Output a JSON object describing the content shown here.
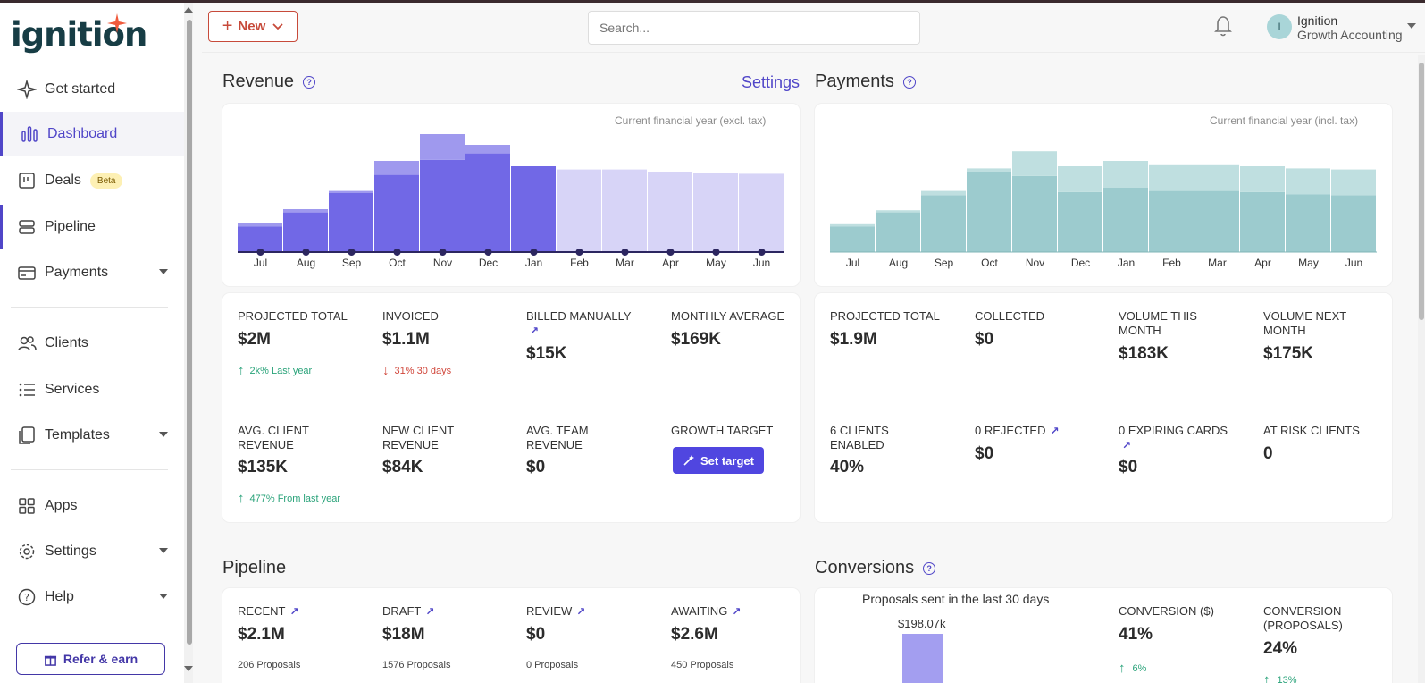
{
  "app": {
    "logo": "ignition"
  },
  "topbar": {
    "new_label": "New",
    "search_placeholder": "Search...",
    "avatar_initial": "I",
    "org_name": "Ignition",
    "org_sub": "Growth Accounting"
  },
  "sidebar": {
    "items": [
      {
        "label": "Get started"
      },
      {
        "label": "Dashboard"
      },
      {
        "label": "Deals",
        "badge": "Beta"
      },
      {
        "label": "Pipeline"
      },
      {
        "label": "Payments"
      },
      {
        "label": "Clients"
      },
      {
        "label": "Services"
      },
      {
        "label": "Templates"
      },
      {
        "label": "Apps"
      },
      {
        "label": "Settings"
      },
      {
        "label": "Help"
      }
    ],
    "refer_label": "Refer & earn"
  },
  "revenue": {
    "title": "Revenue",
    "settings_label": "Settings",
    "caption": "Current financial year (excl. tax)",
    "metrics": [
      {
        "label": "PROJECTED TOTAL",
        "value": "$2M",
        "trend_pct": "2k%",
        "trend_text": "Last year"
      },
      {
        "label": "INVOICED",
        "value": "$1.1M",
        "trend_pct": "31%",
        "trend_text": "30 days"
      },
      {
        "label": "BILLED MANUALLY",
        "value": "$15K"
      },
      {
        "label": "MONTHLY AVERAGE",
        "value": "$169K"
      },
      {
        "label": "AVG. CLIENT REVENUE",
        "value": "$135K",
        "trend_pct": "477%",
        "trend_text": "From last year"
      },
      {
        "label": "NEW CLIENT REVENUE",
        "value": "$84K"
      },
      {
        "label": "AVG. TEAM REVENUE",
        "value": "$0"
      },
      {
        "label": "GROWTH TARGET",
        "button": "Set target"
      }
    ]
  },
  "payments": {
    "title": "Payments",
    "caption": "Current financial year (incl. tax)",
    "metrics": [
      {
        "label": "PROJECTED TOTAL",
        "value": "$1.9M"
      },
      {
        "label": "COLLECTED",
        "value": "$0"
      },
      {
        "label": "VOLUME THIS MONTH",
        "value": "$183K"
      },
      {
        "label": "VOLUME NEXT MONTH",
        "value": "$175K"
      },
      {
        "label": "6 CLIENTS ENABLED",
        "value": "40%"
      },
      {
        "label": "0 REJECTED",
        "value": "$0"
      },
      {
        "label": "0 EXPIRING CARDS",
        "value": "$0"
      },
      {
        "label": "AT RISK CLIENTS",
        "value": "0"
      }
    ]
  },
  "pipeline": {
    "title": "Pipeline",
    "metrics": [
      {
        "label": "RECENT",
        "value": "$2.1M",
        "sub": "206 Proposals"
      },
      {
        "label": "DRAFT",
        "value": "$18M",
        "sub": "1576 Proposals"
      },
      {
        "label": "REVIEW",
        "value": "$0",
        "sub": "0 Proposals"
      },
      {
        "label": "AWAITING",
        "value": "$2.6M",
        "sub": "450 Proposals"
      }
    ]
  },
  "conversions": {
    "title": "Conversions",
    "chart_title": "Proposals sent in the last 30 days",
    "chart_value": "$198.07k",
    "metrics": [
      {
        "label": "CONVERSION ($)",
        "value": "41%",
        "trend_pct": "6%"
      },
      {
        "label": "CONVERSION (PROPOSALS)",
        "value": "24%",
        "trend_pct": "13%"
      }
    ]
  },
  "chart_data": [
    {
      "type": "bar",
      "categories": [
        "Jul",
        "Aug",
        "Sep",
        "Oct",
        "Nov",
        "Dec",
        "Jan",
        "Feb",
        "Mar",
        "Apr",
        "May",
        "Jun"
      ],
      "series": [
        {
          "values": [
            24,
            37,
            55,
            72,
            86,
            92,
            80,
            0,
            0,
            0,
            0,
            0
          ],
          "color": "#7168e6"
        },
        {
          "values": [
            3,
            3,
            2,
            13,
            35,
            8,
            0,
            0,
            0,
            0,
            0,
            0
          ],
          "color": "#9f99ee"
        },
        {
          "values": [
            0,
            0,
            0,
            0,
            0,
            0,
            0,
            77,
            77,
            75,
            74,
            73
          ],
          "color": "#d7d4f7"
        }
      ],
      "ylim": [
        0,
        110
      ],
      "markers": true,
      "colors": {
        "line": "#2c2660"
      }
    },
    {
      "type": "bar",
      "categories": [
        "Jul",
        "Aug",
        "Sep",
        "Oct",
        "Nov",
        "Dec",
        "Jan",
        "Feb",
        "Mar",
        "Apr",
        "May",
        "Jun"
      ],
      "series": [
        {
          "values": [
            24,
            37,
            53,
            75,
            71,
            56,
            60,
            57,
            57,
            56,
            54,
            53
          ],
          "color": "#9ccbce"
        },
        {
          "values": [
            2,
            2,
            4,
            3,
            23,
            24,
            25,
            24,
            24,
            24,
            24,
            24
          ],
          "color": "#bfdfe0"
        }
      ],
      "ylim": [
        0,
        110
      ]
    }
  ]
}
